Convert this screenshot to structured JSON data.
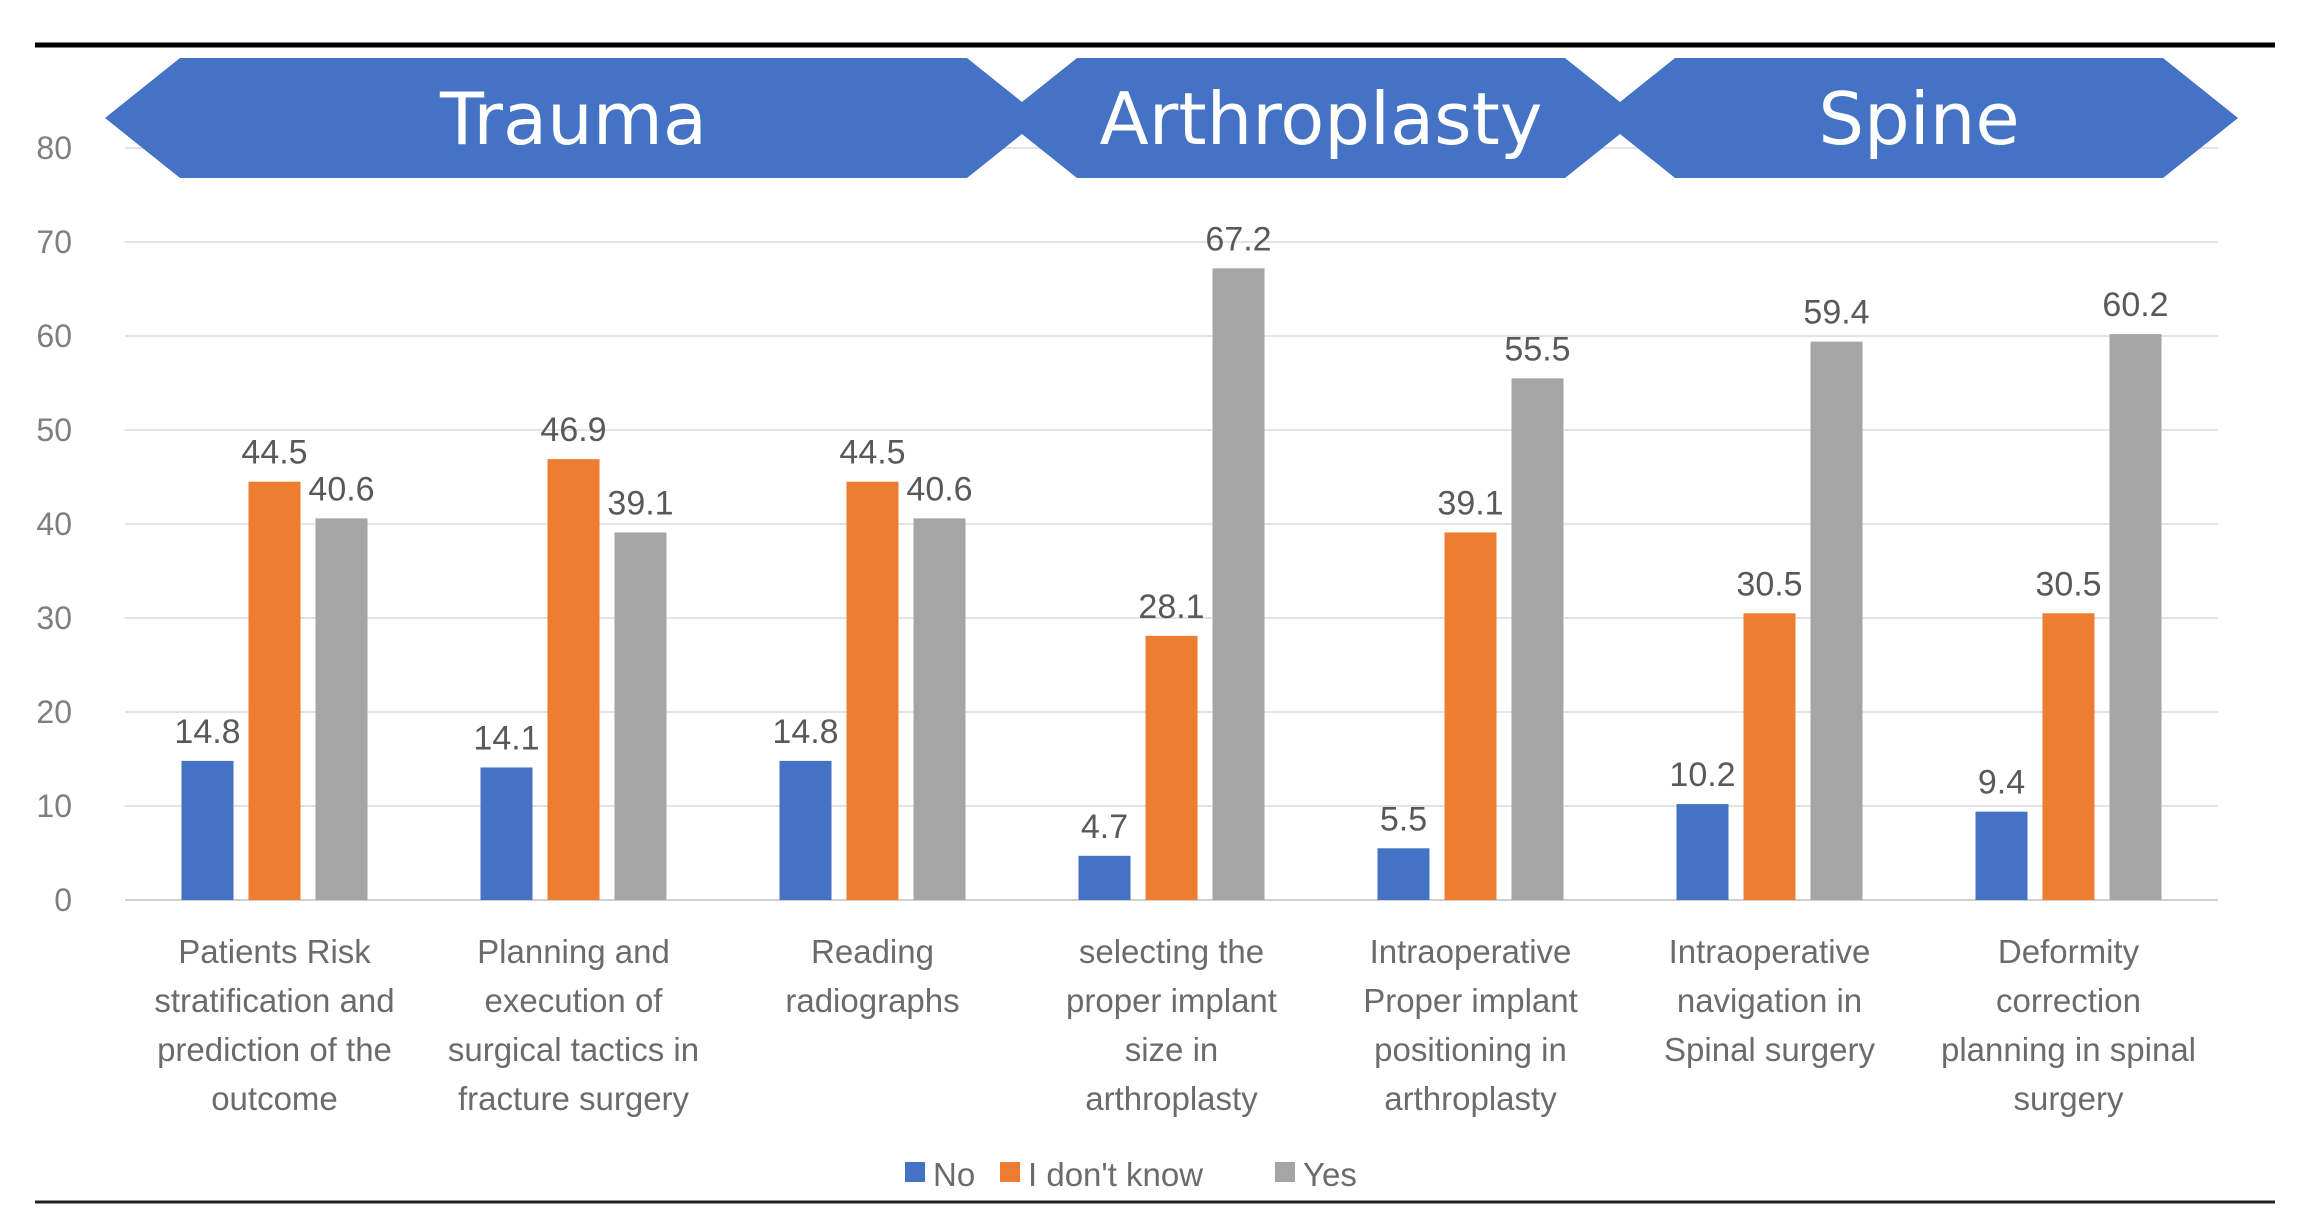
{
  "chart_data": {
    "type": "bar",
    "title": "",
    "xlabel": "",
    "ylabel": "",
    "ylim": [
      0,
      80
    ],
    "yticks": [
      0,
      10,
      20,
      30,
      40,
      50,
      60,
      70,
      80
    ],
    "grid": true,
    "legend_position": "bottom",
    "categories": [
      [
        "Patients Risk",
        "stratification and",
        "prediction of the",
        "outcome"
      ],
      [
        "Planning and",
        "execution of",
        "surgical tactics in",
        "fracture surgery"
      ],
      [
        "Reading",
        "radiographs"
      ],
      [
        "selecting the",
        "proper implant",
        "size in",
        "arthroplasty"
      ],
      [
        "Intraoperative",
        "Proper implant",
        "positioning  in",
        "arthroplasty"
      ],
      [
        "Intraoperative",
        "navigation in",
        "Spinal surgery"
      ],
      [
        "Deformity",
        "correction",
        "planning in spinal",
        "surgery"
      ]
    ],
    "series": [
      {
        "name": "No",
        "color": "#4472c4",
        "values": [
          14.8,
          14.1,
          14.8,
          4.7,
          5.5,
          10.2,
          9.4
        ]
      },
      {
        "name": "I don't know",
        "color": "#ed7d31",
        "values": [
          44.5,
          46.9,
          44.5,
          28.1,
          39.1,
          30.5,
          30.5
        ]
      },
      {
        "name": "Yes",
        "color": "#a5a5a5",
        "values": [
          40.6,
          39.1,
          40.6,
          67.2,
          55.5,
          59.4,
          60.2
        ]
      }
    ],
    "regions": [
      {
        "label": "Trauma",
        "category_span": [
          0,
          2
        ]
      },
      {
        "label": "Arthroplasty",
        "category_span": [
          3,
          4
        ]
      },
      {
        "label": "Spine",
        "category_span": [
          5,
          6
        ]
      }
    ],
    "region_color": "#4472c4"
  }
}
